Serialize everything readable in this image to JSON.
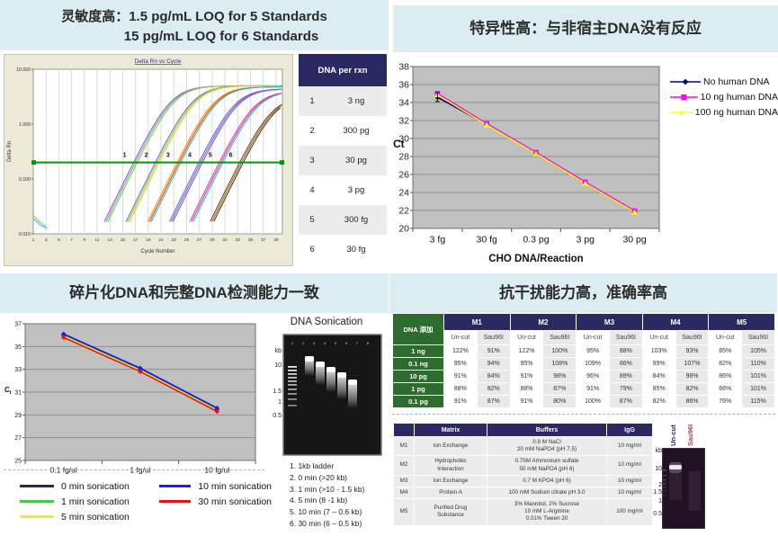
{
  "panels": {
    "sensitivity": {
      "title_prefix": "灵敏度高：",
      "title_line1": "1.5 pg/mL LOQ for 5 Standards",
      "title_line2": "15 pg/mL LOQ for 6 Standards",
      "dna_table": {
        "header": "DNA per rxn",
        "rows": [
          [
            "1",
            "3 ng"
          ],
          [
            "2",
            "300 pg"
          ],
          [
            "3",
            "30 pg"
          ],
          [
            "4",
            "3 pg"
          ],
          [
            "5",
            "300 fg"
          ],
          [
            "6",
            "30 fg"
          ]
        ]
      }
    },
    "specificity": {
      "title": "特异性高：与非宿主DNA没有反应"
    },
    "fragmentation": {
      "title": "碎片化DNA和完整DNA检测能力一致",
      "gel": {
        "title": "DNA Sonication",
        "kb_unit": "kb",
        "kb_labels": [
          "10",
          "1.5",
          "1",
          "0.5"
        ],
        "lane_numbers": [
          "1",
          "2",
          "3",
          "4",
          "5",
          "6",
          "7",
          "8"
        ],
        "legend": [
          "1. 1kb ladder",
          "2. 0 min (>20 kb)",
          "3. 1 min (>10 - 1.5 kb)",
          "4. 5 min (8 -1 kb)",
          "5. 10 min (7 – 0.6 kb)",
          "6. 30 min (6 – 0.5 kb)"
        ]
      }
    },
    "interference": {
      "title": "抗干扰能力高，准确率高",
      "recovery_table": {
        "corner": "DNA 添加",
        "groups": [
          "M1",
          "M2",
          "M3",
          "M4",
          "M5"
        ],
        "sub_headers": [
          "Un-cut",
          "Sau96I"
        ],
        "row_labels": [
          "1 ng",
          "0.1 ng",
          "10 pg",
          "1 pg",
          "0.1 pg"
        ],
        "rows": [
          [
            "122%",
            "91%",
            "122%",
            "100%",
            "95%",
            "88%",
            "103%",
            "93%",
            "85%",
            "105%"
          ],
          [
            "95%",
            "94%",
            "95%",
            "108%",
            "109%",
            "86%",
            "99%",
            "107%",
            "82%",
            "110%"
          ],
          [
            "91%",
            "84%",
            "91%",
            "98%",
            "96%",
            "89%",
            "84%",
            "98%",
            "86%",
            "101%"
          ],
          [
            "88%",
            "82%",
            "88%",
            "87%",
            "91%",
            "79%",
            "85%",
            "82%",
            "66%",
            "101%"
          ],
          [
            "91%",
            "87%",
            "91%",
            "80%",
            "100%",
            "87%",
            "82%",
            "86%",
            "76%",
            "115%"
          ]
        ]
      },
      "matrix_table": {
        "headers": [
          "",
          "Matrix",
          "Buffers",
          "IgG"
        ],
        "rows": [
          {
            "id": "M1",
            "matrix": [
              "Ion Exchange"
            ],
            "buffers": [
              "0.8 M NaCl",
              "20 mM NaPO4 (pH 7.5)"
            ],
            "igg": "10 mg/ml"
          },
          {
            "id": "M2",
            "matrix": [
              "Hydrophobic",
              "Interaction"
            ],
            "buffers": [
              "0.75M Ammonium sulfate",
              "50 mM NaPO4 (pH 6)"
            ],
            "igg": "10 mg/ml"
          },
          {
            "id": "M3",
            "matrix": [
              "Ion Exchange"
            ],
            "buffers": [
              "0.7 M KPO4 (pH 6)"
            ],
            "igg": "10 mg/ml"
          },
          {
            "id": "M4",
            "matrix": [
              "Protein A"
            ],
            "buffers": [
              "100 mM Sodium citrate pH 3.0"
            ],
            "igg": "10 mg/ml"
          },
          {
            "id": "M5",
            "matrix": [
              "Purified Drug",
              "Substance"
            ],
            "buffers": [
              "3% Mannitol, 2% Sucrose",
              "10 mM L-Arginine",
              "0.01% Tween 20"
            ],
            "igg": "100 mg/ml"
          }
        ]
      },
      "digest_gel": {
        "lane_labels": [
          {
            "text": "Un-cut",
            "color": "#2b2963"
          },
          {
            "text": "Sau96I",
            "color": "#cc3344"
          }
        ],
        "kb_unit": "kb",
        "kb_labels": [
          "10",
          "2",
          "1.5",
          "1",
          "0.5"
        ]
      }
    }
  },
  "chart_data": [
    {
      "id": "amplification",
      "type": "line",
      "title": "Delta Rn vs Cycle",
      "xlabel": "Cycle Number",
      "ylabel": "Delta Rn",
      "y_scale": "log",
      "ylim": [
        0.01,
        10
      ],
      "y_tick_labels": [
        "10.000",
        "1.000",
        "0.100",
        "0.010"
      ],
      "x_ticks": [
        1,
        3,
        5,
        7,
        9,
        11,
        13,
        15,
        17,
        19,
        21,
        23,
        25,
        27,
        29,
        31,
        33,
        35,
        37,
        39
      ],
      "threshold_delta_rn": 0.2,
      "threshold_color": "#089408",
      "standards": [
        {
          "label": "1",
          "amount": "3 ng",
          "ct": 17.0,
          "ymax": 5.0,
          "colors": [
            "#b04fc4",
            "#3ec6c0",
            "#a2c93a"
          ]
        },
        {
          "label": "2",
          "amount": "300 pg",
          "ct": 20.4,
          "ymax": 5.0,
          "colors": [
            "#5b79d6",
            "#a2c93a",
            "#e0cf2e"
          ]
        },
        {
          "label": "3",
          "amount": "30 pg",
          "ct": 23.8,
          "ymax": 4.8,
          "colors": [
            "#ff8c1a",
            "#e8452c",
            "#2bbf9a"
          ]
        },
        {
          "label": "4",
          "amount": "3 pg",
          "ct": 27.2,
          "ymax": 4.4,
          "colors": [
            "#7b68c8",
            "#5b79d6",
            "#9b59b6"
          ]
        },
        {
          "label": "5",
          "amount": "300 fg",
          "ct": 30.4,
          "ymax": 4.0,
          "colors": [
            "#e84393",
            "#c044c0",
            "#30c5c5"
          ]
        },
        {
          "label": "6",
          "amount": "30 fg",
          "ct": 33.6,
          "ymax": 3.2,
          "colors": [
            "#8b3a2a",
            "#7a7a20",
            "#5f3b1e"
          ]
        }
      ]
    },
    {
      "id": "specificity",
      "type": "line",
      "categories": [
        "3 fg",
        "30 fg",
        "0.3 pg",
        "3 pg",
        "30 pg"
      ],
      "xlabel": "CHO DNA/Reaction",
      "ylabel": "Ct",
      "ylim": [
        20,
        38
      ],
      "y_step": 2,
      "grid": true,
      "plot_bg": "#c0c0c0",
      "legend_position": "right",
      "series": [
        {
          "name": "No human DNA",
          "color": "#00007e",
          "marker": "diamond",
          "values": [
            34.6,
            31.55,
            28.3,
            25.0,
            21.8
          ]
        },
        {
          "name": "10 ng human DNA",
          "color": "#ff00ff",
          "marker": "square",
          "values": [
            35.0,
            31.65,
            28.45,
            25.15,
            21.95
          ]
        },
        {
          "name": "100 ng human DNA",
          "color": "#ffff00",
          "marker": "triangle",
          "values": [
            34.85,
            31.5,
            28.3,
            25.0,
            21.8
          ]
        }
      ]
    },
    {
      "id": "sonication_ct",
      "type": "line",
      "categories": [
        "0.1 fg/ul",
        "1 fg/ul",
        "10 fg/ul"
      ],
      "ylabel": "Ct",
      "ylim": [
        25,
        37
      ],
      "y_step": 2,
      "grid": true,
      "plot_bg": "#c0c0c0",
      "legend_position": "below",
      "series": [
        {
          "name": "0 min sonication",
          "color": "#2b2963",
          "marker": "diamond",
          "values": [
            36.0,
            33.0,
            29.5
          ]
        },
        {
          "name": "1 min sonication",
          "color": "#44cc44",
          "marker": "none",
          "values": [
            35.95,
            32.95,
            29.45
          ]
        },
        {
          "name": "5 min sonication",
          "color": "#f0ec25",
          "marker": "none",
          "values": [
            35.9,
            32.9,
            29.4
          ]
        },
        {
          "name": "10 min sonication",
          "color": "#1a1aff",
          "marker": "diamond",
          "values": [
            36.1,
            33.1,
            29.6
          ]
        },
        {
          "name": "30 min sonication",
          "color": "#ee1111",
          "marker": "diamond",
          "values": [
            35.8,
            32.8,
            29.3
          ]
        }
      ]
    }
  ],
  "colors": {
    "header_bg": "#dcedf2",
    "navy": "#2b2963",
    "green": "#2e6b2f",
    "plot_beige": "#ece9d8"
  }
}
